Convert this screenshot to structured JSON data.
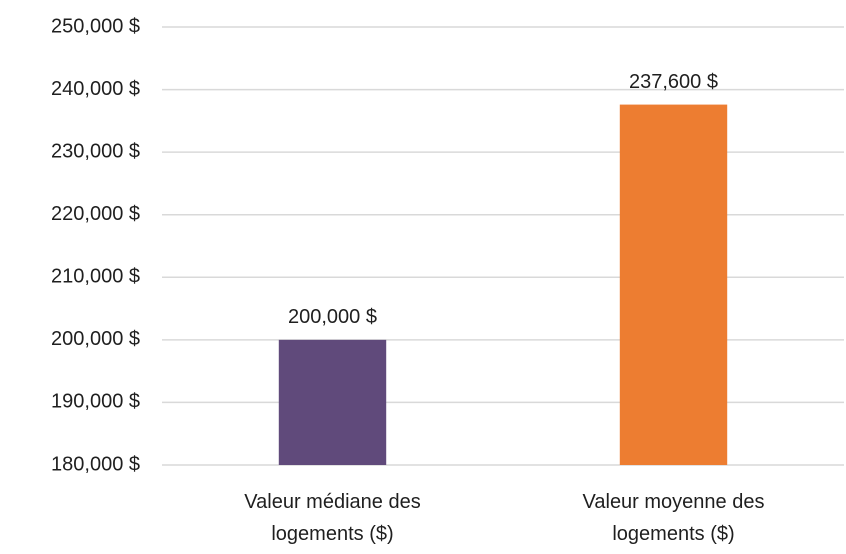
{
  "chart_data": {
    "type": "bar",
    "categories": [
      "Valeur médiane des logements ($)",
      "Valeur moyenne des logements ($)"
    ],
    "values": [
      200000,
      237600
    ],
    "value_labels": [
      "200,000 $",
      "237,600 $"
    ],
    "colors": [
      "#604a7b",
      "#ed7d31"
    ],
    "ylim": [
      180000,
      250000
    ],
    "yticks": [
      {
        "value": 180000,
        "label": "180,000 $"
      },
      {
        "value": 190000,
        "label": "190,000 $"
      },
      {
        "value": 200000,
        "label": "200,000 $"
      },
      {
        "value": 210000,
        "label": "210,000 $"
      },
      {
        "value": 220000,
        "label": "220,000 $"
      },
      {
        "value": 230000,
        "label": "230,000 $"
      },
      {
        "value": 240000,
        "label": "240,000 $"
      },
      {
        "value": 250000,
        "label": "250,000 $"
      }
    ],
    "grid": true
  }
}
